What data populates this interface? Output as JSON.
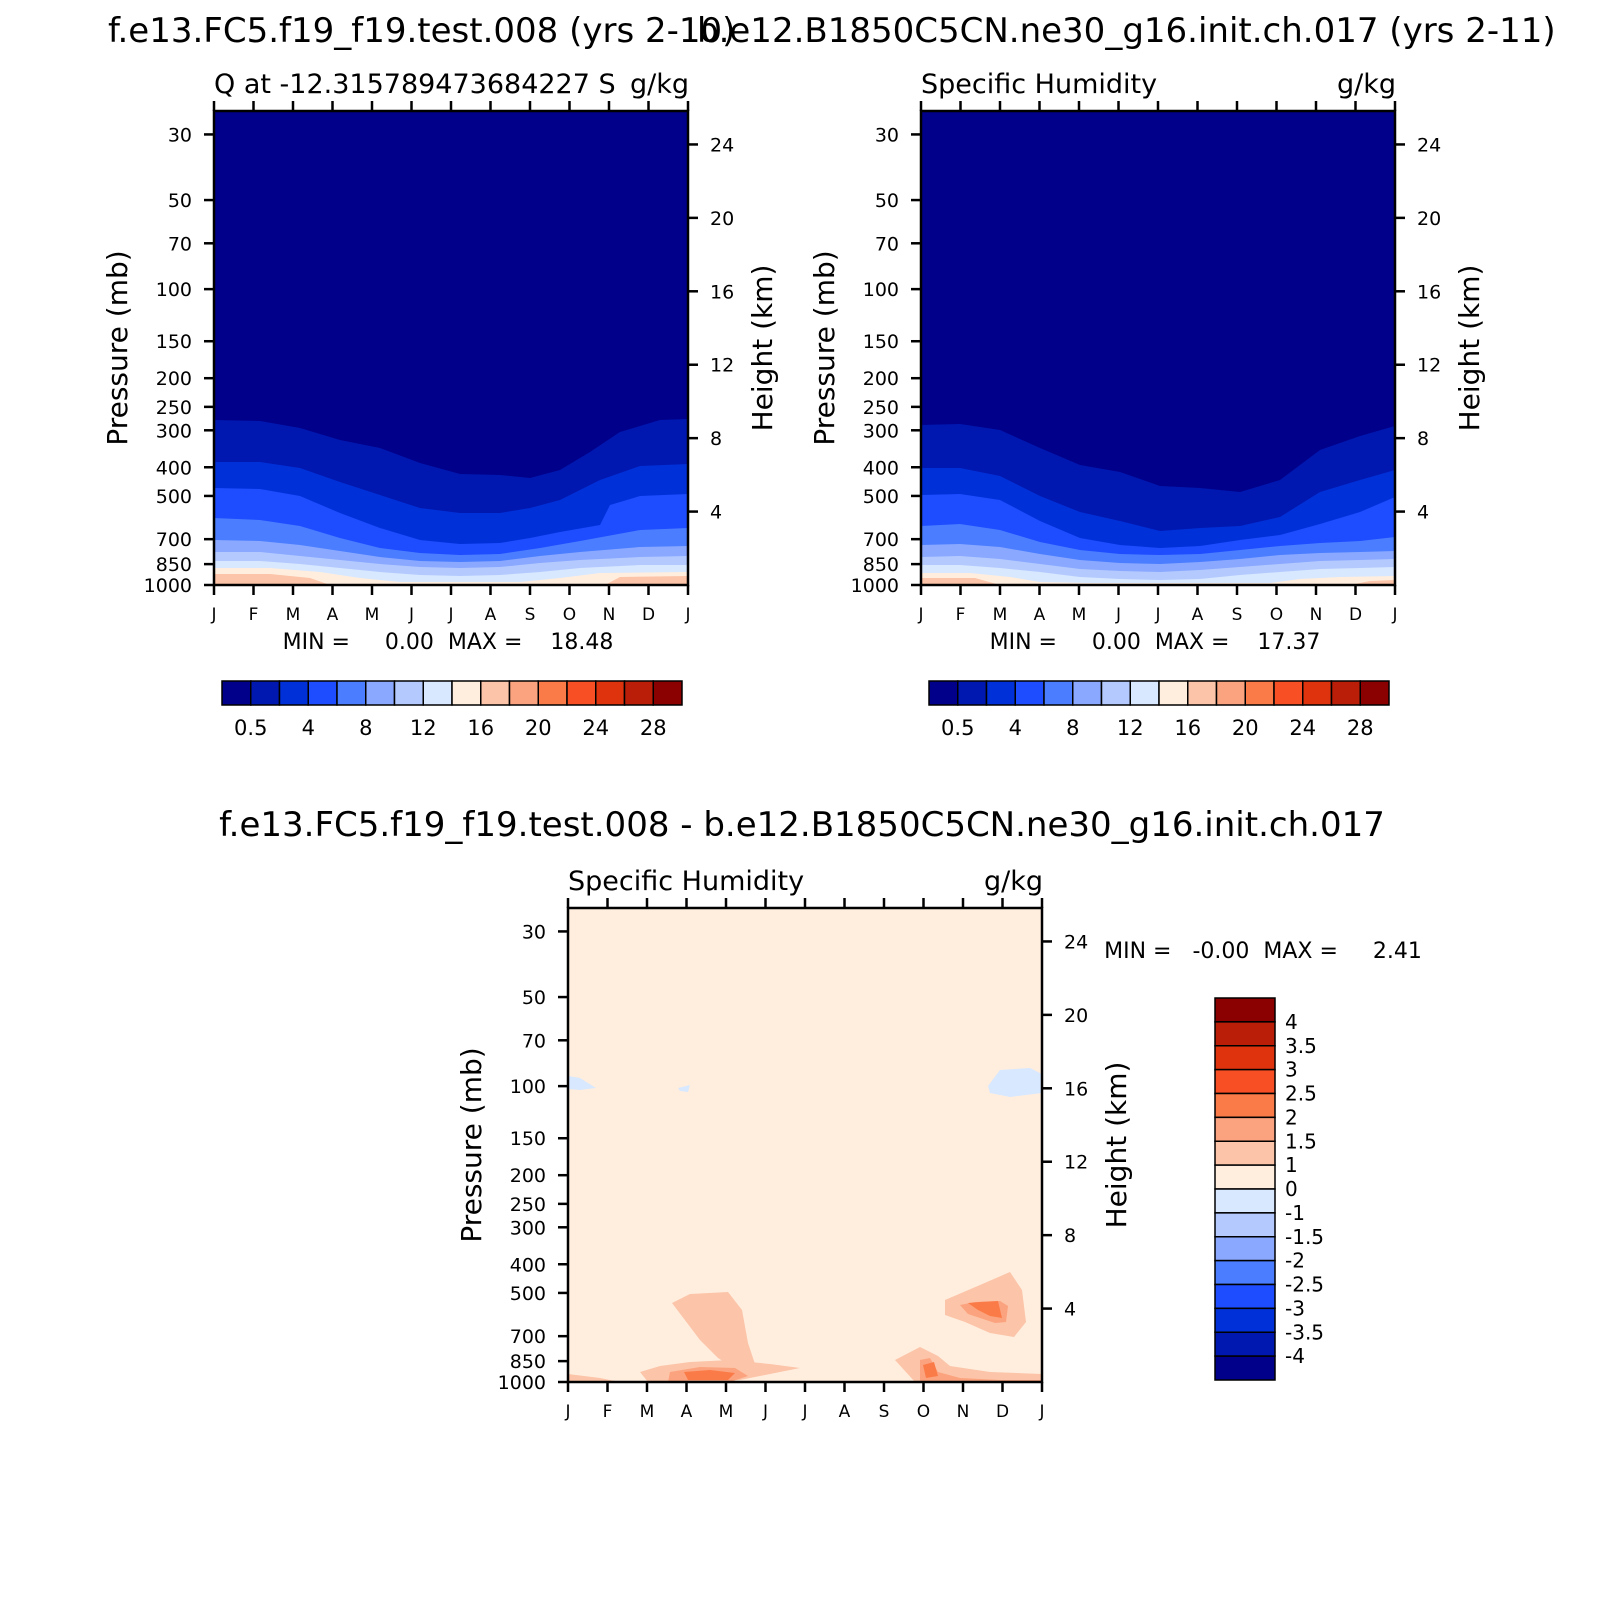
{
  "figure": {
    "panels": [
      {
        "id": "test",
        "top_title": "f.e13.FC5.f19_f19.test.008 (yrs 2-10)",
        "left_title": "Q at -12.315789473684227 S",
        "units": "g/kg",
        "min_max": "MIN =     0.00  MAX =    18.48"
      },
      {
        "id": "control",
        "top_title": "b.e12.B1850C5CN.ne30_g16.init.ch.017 (yrs 2-11)",
        "left_title": "Specific Humidity",
        "units": "g/kg",
        "min_max": "MIN =     0.00  MAX =    17.37"
      },
      {
        "id": "difference",
        "top_title": "f.e13.FC5.f19_f19.test.008 - b.e12.B1850C5CN.ne30_g16.init.ch.017",
        "left_title": "Specific Humidity",
        "units": "g/kg",
        "min_max": "MIN =   -0.00  MAX =     2.41"
      }
    ]
  },
  "chart_data": [
    {
      "type": "heatmap",
      "panel": "test",
      "title": "f.e13.FC5.f19_f19.test.008 (yrs 2-10)",
      "subtitle": "Q at -12.315789473684227 S",
      "units": "g/kg",
      "xlabel": "",
      "ylabel": "Pressure (mb)",
      "y2label": "Height (km)",
      "x_ticks": [
        "J",
        "F",
        "M",
        "A",
        "M",
        "J",
        "J",
        "A",
        "S",
        "O",
        "N",
        "D",
        "J"
      ],
      "y_ticks": [
        30,
        50,
        70,
        100,
        150,
        200,
        250,
        300,
        400,
        500,
        700,
        850,
        1000
      ],
      "y2_ticks": [
        4,
        8,
        12,
        16,
        20,
        24
      ],
      "ylim": [
        1000,
        25
      ],
      "y_scale": "log",
      "min": 0.0,
      "max": 18.48,
      "colorbar": {
        "orientation": "horizontal",
        "labels": [
          "0.5",
          "4",
          "8",
          "12",
          "16",
          "20",
          "24",
          "28"
        ],
        "colors": [
          "#00008b",
          "#0018b0",
          "#0030d8",
          "#1e4cff",
          "#4a7dff",
          "#8aa8ff",
          "#b4caff",
          "#d8e8ff",
          "#ffeede",
          "#fcc4a8",
          "#fba37e",
          "#fb7b48",
          "#f84f25",
          "#de330c",
          "#bb1e08",
          "#8b0000"
        ]
      }
    },
    {
      "type": "heatmap",
      "panel": "control",
      "title": "b.e12.B1850C5CN.ne30_g16.init.ch.017 (yrs 2-11)",
      "subtitle": "Specific Humidity",
      "units": "g/kg",
      "xlabel": "",
      "ylabel": "Pressure (mb)",
      "y2label": "Height (km)",
      "x_ticks": [
        "J",
        "F",
        "M",
        "A",
        "M",
        "J",
        "J",
        "A",
        "S",
        "O",
        "N",
        "D",
        "J"
      ],
      "y_ticks": [
        30,
        50,
        70,
        100,
        150,
        200,
        250,
        300,
        400,
        500,
        700,
        850,
        1000
      ],
      "y2_ticks": [
        4,
        8,
        12,
        16,
        20,
        24
      ],
      "ylim": [
        1000,
        25
      ],
      "y_scale": "log",
      "min": 0.0,
      "max": 17.37,
      "colorbar": {
        "orientation": "horizontal",
        "labels": [
          "0.5",
          "4",
          "8",
          "12",
          "16",
          "20",
          "24",
          "28"
        ],
        "colors": [
          "#00008b",
          "#0018b0",
          "#0030d8",
          "#1e4cff",
          "#4a7dff",
          "#8aa8ff",
          "#b4caff",
          "#d8e8ff",
          "#ffeede",
          "#fcc4a8",
          "#fba37e",
          "#fb7b48",
          "#f84f25",
          "#de330c",
          "#bb1e08",
          "#8b0000"
        ]
      }
    },
    {
      "type": "heatmap",
      "panel": "difference",
      "title": "f.e13.FC5.f19_f19.test.008 - b.e12.B1850C5CN.ne30_g16.init.ch.017",
      "subtitle": "Specific Humidity",
      "units": "g/kg",
      "xlabel": "",
      "ylabel": "Pressure (mb)",
      "y2label": "Height (km)",
      "x_ticks": [
        "J",
        "F",
        "M",
        "A",
        "M",
        "J",
        "J",
        "A",
        "S",
        "O",
        "N",
        "D",
        "J"
      ],
      "y_ticks": [
        30,
        50,
        70,
        100,
        150,
        200,
        250,
        300,
        400,
        500,
        700,
        850,
        1000
      ],
      "y2_ticks": [
        4,
        8,
        12,
        16,
        20,
        24
      ],
      "ylim": [
        1000,
        25
      ],
      "y_scale": "log",
      "min": -0.0,
      "max": 2.41,
      "colorbar": {
        "orientation": "vertical",
        "labels": [
          "4",
          "3.5",
          "3",
          "2.5",
          "2",
          "1.5",
          "1",
          "0",
          "-1",
          "-1.5",
          "-2",
          "-2.5",
          "-3",
          "-3.5",
          "-4"
        ],
        "colors": [
          "#8b0000",
          "#bb1e08",
          "#de330c",
          "#f84f25",
          "#fb7b48",
          "#fba37e",
          "#fcc4a8",
          "#ffeede",
          "#d8e8ff",
          "#b4caff",
          "#8aa8ff",
          "#4a7dff",
          "#1e4cff",
          "#0030d8",
          "#0018b0",
          "#00008b"
        ]
      }
    }
  ]
}
